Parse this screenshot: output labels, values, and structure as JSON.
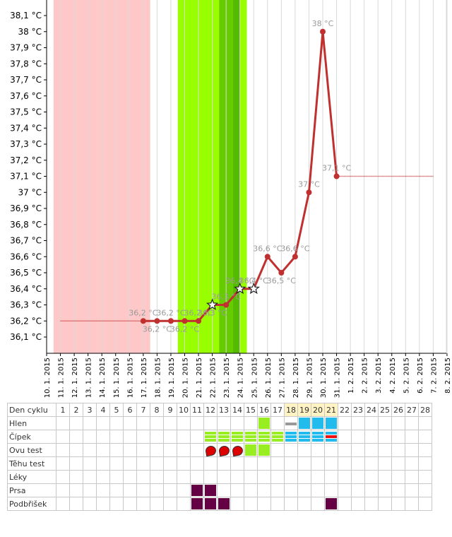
{
  "chart_data": {
    "type": "line",
    "title": "",
    "xlabel": "",
    "ylabel": "",
    "ylim": [
      36.0,
      38.2
    ],
    "y_ticks": [
      "36,1 °C",
      "36,2 °C",
      "36,3 °C",
      "36,4 °C",
      "36,5 °C",
      "36,6 °C",
      "36,7 °C",
      "36,8 °C",
      "36,9 °C",
      "37 °C",
      "37,1 °C",
      "37,2 °C",
      "37,3 °C",
      "37,4 °C",
      "37,5 °C",
      "37,6 °C",
      "37,7 °C",
      "37,8 °C",
      "37,9 °C",
      "38 °C",
      "38,1 °C"
    ],
    "x_ticks": [
      "10. 1. 2015",
      "11. 1. 2015",
      "12. 1. 2015",
      "13. 1. 2015",
      "14. 1. 2015",
      "15. 1. 2015",
      "16. 1. 2015",
      "17. 1. 2015",
      "18. 1. 2015",
      "19. 1. 2015",
      "20. 1. 2015",
      "21. 1. 2015",
      "22. 1. 2015",
      "23. 1. 2015",
      "24. 1. 2015",
      "25. 1. 2015",
      "26. 1. 2015",
      "27. 1. 2015",
      "28. 1. 2015",
      "29. 1. 2015",
      "30. 1. 2015",
      "31. 1. 2015",
      "1. 2. 2015",
      "2. 2. 2015",
      "3. 2. 2015",
      "4. 2. 2015",
      "5. 2. 2015",
      "6. 2. 2015",
      "7. 2. 2015",
      "8. 2. 2015"
    ],
    "grid": true,
    "series": [
      {
        "color": "#c0302f",
        "points": [
          {
            "x": "17. 1. 2015",
            "y": 36.2,
            "label": "36,2 °C",
            "marker": "dot"
          },
          {
            "x": "18. 1. 2015",
            "y": 36.2,
            "label": "36,2 °C",
            "marker": "dot"
          },
          {
            "x": "19. 1. 2015",
            "y": 36.2,
            "label": "36,2 °C",
            "marker": "dot"
          },
          {
            "x": "20. 1. 2015",
            "y": 36.2,
            "label": "36,2 °C",
            "marker": "dot"
          },
          {
            "x": "21. 1. 2015",
            "y": 36.2,
            "label": "36,2 °C",
            "marker": "dot"
          },
          {
            "x": "22. 1. 2015",
            "y": 36.3,
            "label": "36,3 °C",
            "marker": "star"
          },
          {
            "x": "23. 1. 2015",
            "y": 36.3,
            "label": "36,3 °C",
            "marker": "dot"
          },
          {
            "x": "24. 1. 2015",
            "y": 36.4,
            "label": "36,4 °C",
            "marker": "star"
          },
          {
            "x": "25. 1. 2015",
            "y": 36.4,
            "label": "36,4 °C",
            "marker": "star"
          },
          {
            "x": "26. 1. 2015",
            "y": 36.6,
            "label": "36,6 °C",
            "marker": "dot"
          },
          {
            "x": "27. 1. 2015",
            "y": 36.5,
            "label": "36,5 °C",
            "marker": "dot"
          },
          {
            "x": "28. 1. 2015",
            "y": 36.6,
            "label": "36,6 °C",
            "marker": "dot"
          },
          {
            "x": "29. 1. 2015",
            "y": 37.0,
            "label": "37 °C",
            "marker": "dot"
          },
          {
            "x": "30. 1. 2015",
            "y": 38.0,
            "label": "38 °C",
            "marker": "dot"
          },
          {
            "x": "31. 1. 2015",
            "y": 37.1,
            "label": "37,1 °C",
            "marker": "dot"
          }
        ]
      }
    ],
    "reference_lines": [
      {
        "from": "11. 1. 2015",
        "to": "17. 1. 2015",
        "y": 36.2,
        "color": "#c0302f"
      },
      {
        "from": "31. 1. 2015",
        "to": "7. 2. 2015",
        "y": 37.1,
        "color": "#c0302f"
      }
    ],
    "shaded_ranges": [
      {
        "from": "10.5",
        "to": "17.5",
        "color": "#ffc8c8",
        "meaning": "period"
      },
      {
        "from": "19.5",
        "to": "24.5",
        "color": "#99ff00",
        "meaning": "fertile"
      },
      {
        "from": "22.5",
        "to": "23.5",
        "color": "#66cc00",
        "meaning": "fertile-peak"
      },
      {
        "from": "23.5",
        "to": "24.0",
        "color": "#55bb00",
        "meaning": "ovulation"
      }
    ]
  },
  "table": {
    "days": [
      "1",
      "2",
      "3",
      "4",
      "5",
      "6",
      "7",
      "8",
      "9",
      "10",
      "11",
      "12",
      "13",
      "14",
      "15",
      "16",
      "17",
      "18",
      "19",
      "20",
      "21",
      "22",
      "23",
      "24",
      "25",
      "26",
      "27",
      "28"
    ],
    "highlight_days": [
      18,
      19,
      20,
      21
    ],
    "rows": [
      {
        "label": "Den cyklu"
      },
      {
        "label": "Hlen"
      },
      {
        "label": "Čípek"
      },
      {
        "label": "Ovu test"
      },
      {
        "label": "Těhu test"
      },
      {
        "label": "Léky"
      },
      {
        "label": "Prsa"
      },
      {
        "label": "Podbřišek"
      }
    ],
    "colors": {
      "green": "#99ee22",
      "blue": "#22bbee",
      "grey": "#999999",
      "red": "#ee1111",
      "purple": "#660044",
      "ovu_red": "#dd0000",
      "ovu_green": "#88dd11"
    },
    "hlen": {
      "16": "green",
      "18": "grey-bar",
      "19": "blue",
      "20": "blue",
      "21": "blue"
    },
    "cipek": {
      "12": "green-stripes",
      "13": "green-stripes",
      "14": "green-stripes",
      "15": "green-stripes",
      "16": "green-stripes",
      "17": "green-stripes",
      "18": "blue-stripes",
      "19": "blue-stripes",
      "20": "blue-stripes",
      "21": "blue-red-stripes"
    },
    "ovu": {
      "12": "red",
      "13": "red",
      "14": "red",
      "15": "green",
      "16": "green"
    },
    "prsa": {
      "11": "purple",
      "12": "purple"
    },
    "podbrisek": {
      "11": "purple",
      "12": "purple",
      "13": "purple",
      "21": "purple"
    }
  }
}
